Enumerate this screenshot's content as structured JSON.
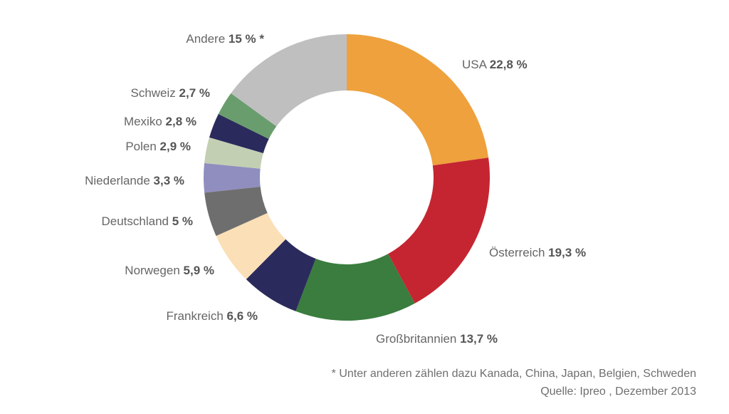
{
  "chart_data": {
    "type": "pie",
    "title": "",
    "series": [
      {
        "name": "USA",
        "value": 22.8,
        "label_value": "22,8 %",
        "color": "#eea13c"
      },
      {
        "name": "Österreich",
        "value": 19.3,
        "label_value": "19,3 %",
        "color": "#c52531"
      },
      {
        "name": "Großbritannien",
        "value": 13.7,
        "label_value": "13,7 %",
        "color": "#3a7d3e"
      },
      {
        "name": "Frankreich",
        "value": 6.6,
        "label_value": "6,6 %",
        "color": "#2b2a5c"
      },
      {
        "name": "Norwegen",
        "value": 5.9,
        "label_value": "5,9 %",
        "color": "#fbdfb6"
      },
      {
        "name": "Deutschland",
        "value": 5.0,
        "label_value": "5 %",
        "color": "#6e6e6e"
      },
      {
        "name": "Niederlande",
        "value": 3.3,
        "label_value": "3,3 %",
        "color": "#908ebf"
      },
      {
        "name": "Polen",
        "value": 2.9,
        "label_value": "2,9 %",
        "color": "#c3cfb2"
      },
      {
        "name": "Mexiko",
        "value": 2.8,
        "label_value": "2,8 %",
        "color": "#2b2a5c"
      },
      {
        "name": "Schweiz",
        "value": 2.7,
        "label_value": "2,7 %",
        "color": "#6a9d6e"
      },
      {
        "name": "Andere",
        "value": 15.0,
        "label_value": "15 % *",
        "color": "#bfbfbf"
      }
    ],
    "donut": true
  },
  "footnote": "* Unter anderen zählen dazu Kanada, China, Japan, Belgien, Schweden",
  "source": "Quelle: Ipreo , Dezember 2013"
}
